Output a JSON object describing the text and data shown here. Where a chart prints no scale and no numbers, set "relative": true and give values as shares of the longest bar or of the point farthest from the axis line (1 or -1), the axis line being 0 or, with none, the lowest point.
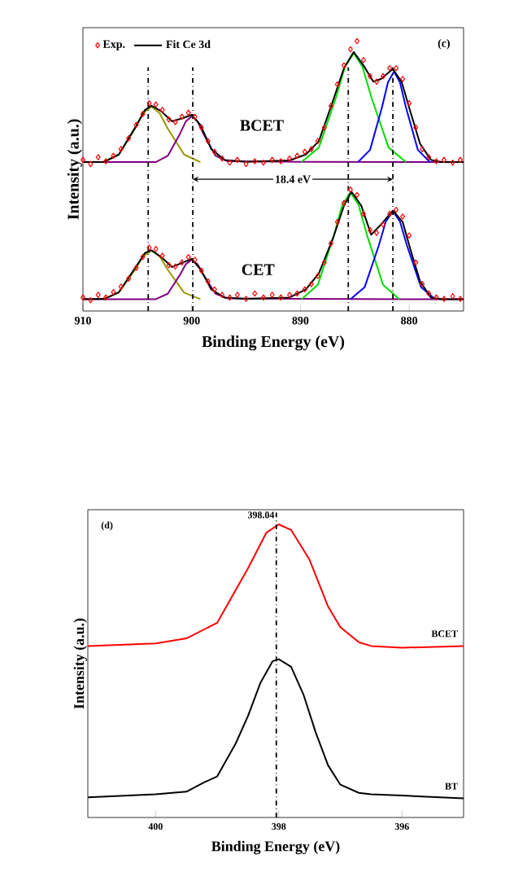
{
  "chart_data": [
    {
      "type": "line",
      "title": "(c)",
      "xlabel": "Binding Energy (eV)",
      "ylabel": "Intensity (a.u.)",
      "relative": true,
      "xlim": [
        910,
        875
      ],
      "xticks": [
        910,
        900,
        890,
        880
      ],
      "legend": "top left",
      "annotations": [
        "BCET",
        "CET",
        "18.4 eV"
      ],
      "ref_lines": [
        {
          "axis": "x",
          "value": 904,
          "line_style": "dashdot"
        },
        {
          "axis": "x",
          "value": 899.9,
          "line_style": "dashdot"
        },
        {
          "axis": "x",
          "value": 885.6,
          "line_style": "dashdot"
        },
        {
          "axis": "x",
          "value": 881.5,
          "line_style": "dashdot"
        }
      ],
      "series": [
        {
          "color": "#999900",
          "marker": "none",
          "x": [
            908.2,
            906.7,
            905.2,
            904.45,
            903.7,
            902.95,
            902.2,
            900.7,
            899.2
          ],
          "values": [
            0.552,
            0.58,
            0.676,
            0.733,
            0.757,
            0.733,
            0.676,
            0.58,
            0.552
          ]
        },
        {
          "color": "#800080",
          "marker": "none",
          "x": [
            910,
            903.3,
            902.2,
            901.1,
            900.55,
            900,
            899.45,
            898.9,
            897.8,
            896.7,
            890,
            880,
            875
          ],
          "values": [
            0.552,
            0.552,
            0.575,
            0.655,
            0.702,
            0.722,
            0.702,
            0.655,
            0.575,
            0.555,
            0.553,
            0.552,
            0.552
          ]
        },
        {
          "color": "#00dd00",
          "marker": "none",
          "x": [
            889.9,
            888.3,
            886.7,
            885.9,
            885.1,
            884.3,
            883.5,
            881.9,
            880.3
          ],
          "values": [
            0.552,
            0.606,
            0.795,
            0.905,
            0.955,
            0.905,
            0.795,
            0.606,
            0.552
          ]
        },
        {
          "color": "#0000ff",
          "marker": "none",
          "x": [
            884.7,
            883.6,
            882.5,
            881.95,
            881.4,
            880.85,
            880.3,
            879.2,
            878.1
          ],
          "values": [
            0.552,
            0.597,
            0.755,
            0.848,
            0.887,
            0.848,
            0.755,
            0.597,
            0.552
          ]
        },
        {
          "type": "scatter",
          "name": "Exp.",
          "color": "#ff0000",
          "marker": "diamond",
          "x": [
            910,
            909.3,
            908.6,
            907.9,
            907.2,
            906.5,
            905.8,
            905.1,
            904.5,
            903.9,
            903.3,
            902.7,
            902.1,
            901.5,
            900.9,
            900.3,
            899.7,
            899.1,
            898.5,
            897.9,
            897.2,
            896.5,
            895.8,
            895,
            894.2,
            893.4,
            892.6,
            891.8,
            891,
            890.3,
            889.6,
            889,
            888.4,
            887.8,
            887.2,
            886.6,
            886,
            885.4,
            884.8,
            884.2,
            883.6,
            883,
            882.4,
            881.8,
            881.2,
            880.6,
            880,
            879.4,
            878.8,
            878.2,
            877.5,
            876.8,
            876,
            875.3
          ],
          "values": [
            0.56,
            0.545,
            0.57,
            0.555,
            0.575,
            0.6,
            0.64,
            0.69,
            0.73,
            0.77,
            0.765,
            0.745,
            0.71,
            0.7,
            0.72,
            0.735,
            0.72,
            0.68,
            0.63,
            0.59,
            0.565,
            0.55,
            0.56,
            0.545,
            0.555,
            0.55,
            0.56,
            0.555,
            0.565,
            0.575,
            0.59,
            0.6,
            0.63,
            0.68,
            0.76,
            0.84,
            0.91,
            0.97,
            1.0,
            0.93,
            0.87,
            0.85,
            0.87,
            0.9,
            0.9,
            0.86,
            0.77,
            0.68,
            0.6,
            0.57,
            0.555,
            0.56,
            0.55,
            0.56
          ]
        },
        {
          "name": "Fit Ce 3d",
          "color": "#000000",
          "marker": "none",
          "x": [
            910,
            908,
            906.7,
            905.2,
            904.3,
            903.7,
            902.8,
            901.8,
            900.8,
            900,
            899.2,
            898.2,
            897,
            895,
            891,
            889.5,
            888.3,
            887,
            886,
            885.1,
            884.2,
            883.3,
            882.6,
            881.5,
            880.7,
            879.9,
            879,
            878,
            877,
            875
          ],
          "values": [
            0.552,
            0.553,
            0.58,
            0.68,
            0.745,
            0.761,
            0.74,
            0.703,
            0.715,
            0.727,
            0.69,
            0.6,
            0.56,
            0.553,
            0.558,
            0.58,
            0.63,
            0.78,
            0.9,
            0.96,
            0.91,
            0.85,
            0.86,
            0.897,
            0.85,
            0.74,
            0.62,
            0.56,
            0.552,
            0.552
          ]
        },
        {
          "color": "#999900",
          "marker": "none",
          "x": [
            908.2,
            906.7,
            905.2,
            904.45,
            903.7,
            902.95,
            902.2,
            900.7,
            899.2
          ],
          "values": [
            0.044,
            0.068,
            0.153,
            0.203,
            0.224,
            0.203,
            0.153,
            0.068,
            0.044
          ]
        },
        {
          "color": "#800080",
          "marker": "none",
          "x": [
            910,
            903.3,
            902.2,
            901.1,
            900.55,
            900,
            899.45,
            898.9,
            897.8,
            896.7,
            890,
            880,
            875
          ],
          "values": [
            0.044,
            0.044,
            0.064,
            0.133,
            0.173,
            0.19,
            0.173,
            0.133,
            0.064,
            0.047,
            0.045,
            0.044,
            0.044
          ]
        },
        {
          "color": "#00dd00",
          "marker": "none",
          "x": [
            889.9,
            888.4,
            886.9,
            886.15,
            885.4,
            884.65,
            883.9,
            882.4,
            880.9
          ],
          "values": [
            0.044,
            0.097,
            0.284,
            0.393,
            0.44,
            0.393,
            0.284,
            0.097,
            0.044
          ]
        },
        {
          "color": "#0000ff",
          "marker": "none",
          "x": [
            885.4,
            884.1,
            882.8,
            882.15,
            881.5,
            880.85,
            880.2,
            878.9,
            877.6
          ],
          "values": [
            0.044,
            0.088,
            0.242,
            0.332,
            0.37,
            0.332,
            0.242,
            0.088,
            0.044
          ]
        },
        {
          "type": "scatter",
          "color": "#ff0000",
          "marker": "diamond",
          "x": [
            910,
            909.3,
            908.6,
            907.9,
            907.2,
            906.5,
            905.8,
            905.1,
            904.5,
            903.9,
            903.3,
            902.7,
            902.1,
            901.5,
            900.9,
            900.3,
            899.7,
            899.1,
            898.5,
            897.9,
            897.2,
            896.5,
            895.8,
            895,
            894.2,
            893.4,
            892.6,
            891.8,
            891,
            890.3,
            889.6,
            889,
            888.4,
            887.8,
            887.2,
            886.6,
            886,
            885.4,
            884.8,
            884.2,
            883.6,
            883,
            882.4,
            881.8,
            881.2,
            880.6,
            880,
            879.4,
            878.8,
            878.2,
            877.5,
            876.8,
            876,
            875.3
          ],
          "values": [
            0.05,
            0.04,
            0.06,
            0.05,
            0.07,
            0.09,
            0.12,
            0.16,
            0.2,
            0.235,
            0.23,
            0.205,
            0.17,
            0.165,
            0.18,
            0.2,
            0.19,
            0.15,
            0.11,
            0.08,
            0.06,
            0.05,
            0.06,
            0.045,
            0.065,
            0.05,
            0.06,
            0.05,
            0.06,
            0.065,
            0.08,
            0.1,
            0.13,
            0.18,
            0.25,
            0.33,
            0.4,
            0.45,
            0.43,
            0.36,
            0.3,
            0.29,
            0.32,
            0.36,
            0.375,
            0.35,
            0.28,
            0.18,
            0.1,
            0.065,
            0.05,
            0.045,
            0.055,
            0.045
          ]
        },
        {
          "color": "#000000",
          "marker": "none",
          "x": [
            910,
            908,
            906.7,
            905.2,
            904.3,
            903.7,
            902.8,
            901.8,
            900.8,
            900,
            899.2,
            898.2,
            897,
            895,
            891,
            889.5,
            888.3,
            887,
            886,
            885.3,
            884.4,
            883.5,
            882.6,
            881.5,
            880.6,
            879.9,
            879,
            878,
            877,
            875
          ],
          "values": [
            0.044,
            0.045,
            0.07,
            0.16,
            0.215,
            0.225,
            0.2,
            0.163,
            0.18,
            0.193,
            0.155,
            0.08,
            0.05,
            0.045,
            0.05,
            0.08,
            0.14,
            0.27,
            0.39,
            0.442,
            0.39,
            0.283,
            0.32,
            0.372,
            0.33,
            0.23,
            0.11,
            0.05,
            0.044,
            0.044
          ]
        }
      ]
    },
    {
      "type": "line",
      "title": "(d)",
      "xlabel": "Binding Energy (eV)",
      "ylabel": "Intensity (a.u.)",
      "relative": true,
      "xlim": [
        401.1,
        395
      ],
      "xticks": [
        400,
        398,
        396
      ],
      "ref_lines": [
        {
          "axis": "x",
          "value": 398.04,
          "label": "398.04",
          "line_style": "dashdot"
        }
      ],
      "series": [
        {
          "name": "BCET",
          "color": "#ff0000",
          "marker": "none",
          "x": [
            401.1,
            400,
            399.5,
            399,
            398.5,
            398.2,
            398,
            397.8,
            397.5,
            397.2,
            397,
            396.7,
            396.5,
            396,
            395
          ],
          "values": [
            0.585,
            0.594,
            0.611,
            0.664,
            0.85,
            0.972,
            1.0,
            0.981,
            0.879,
            0.72,
            0.649,
            0.598,
            0.585,
            0.579,
            0.585
          ]
        },
        {
          "name": "BT",
          "color": "#000000",
          "marker": "none",
          "x": [
            401.1,
            400,
            399.5,
            399.2,
            399,
            398.7,
            398.5,
            398.3,
            398.1,
            398,
            397.8,
            397.6,
            397.4,
            397.2,
            397,
            396.7,
            396.5,
            396,
            395
          ],
          "values": [
            0.069,
            0.079,
            0.088,
            0.121,
            0.14,
            0.252,
            0.346,
            0.458,
            0.533,
            0.54,
            0.514,
            0.42,
            0.29,
            0.178,
            0.112,
            0.084,
            0.079,
            0.075,
            0.065
          ]
        }
      ]
    }
  ]
}
